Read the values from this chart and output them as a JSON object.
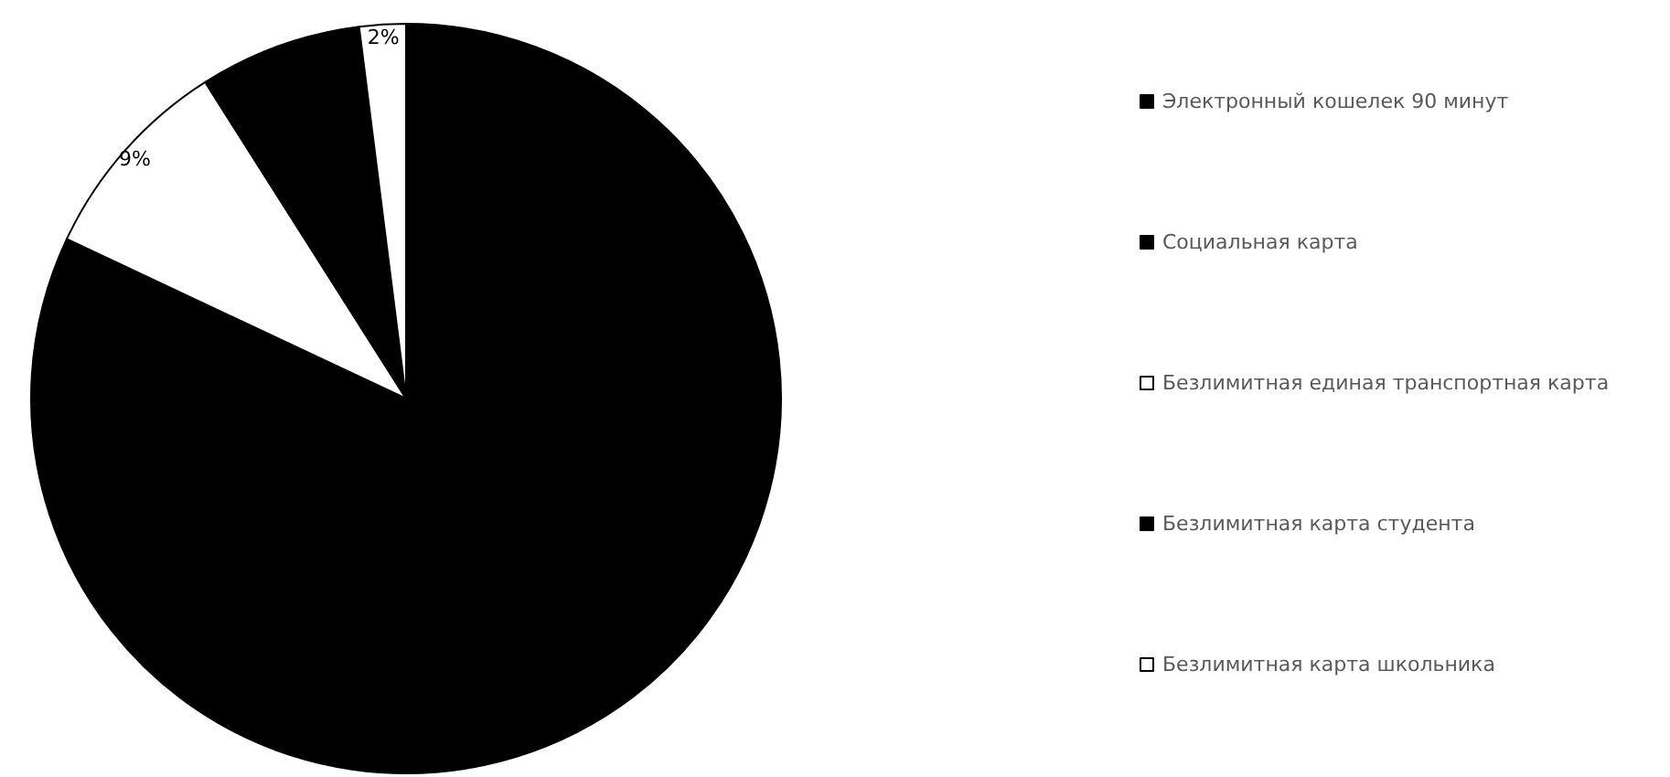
{
  "chart_data": {
    "type": "pie",
    "categories": [
      "Электронный кошелек 90 минут",
      "Социальная карта",
      "Безлимитная единая транспортная карта",
      "Безлимитная карта студента",
      "Безлимитная карта школьника"
    ],
    "values": [
      70,
      12,
      9,
      7,
      2
    ],
    "colors": [
      "#000000",
      "#000000",
      "#ffffff",
      "#000000",
      "#ffffff"
    ],
    "value_labels": [
      null,
      null,
      "9%",
      null,
      "2%"
    ],
    "legend": "right"
  }
}
